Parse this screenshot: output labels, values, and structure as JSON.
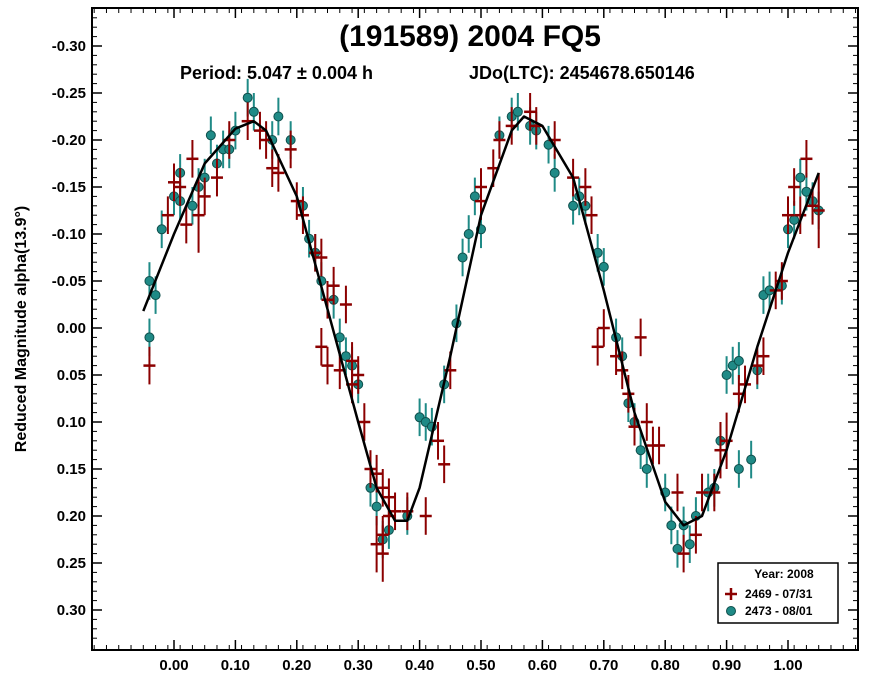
{
  "chart_data": {
    "type": "scatter",
    "title": "(191589) 2004 FQ5",
    "subtitle_period": "Period: 5.047 ± 0.004 h",
    "subtitle_jdo": "JDo(LTC): 2454678.650146",
    "ylabel": "Reduced Magnitude alpha(13.9°)",
    "xlabel": "",
    "xlim": [
      -0.1,
      1.12
    ],
    "ylim": [
      0.35,
      -0.35
    ],
    "y_inverted": true,
    "x_ticks": [
      "0.00",
      "0.10",
      "0.20",
      "0.30",
      "0.40",
      "0.50",
      "0.60",
      "0.70",
      "0.80",
      "0.90",
      "1.00"
    ],
    "y_ticks": [
      "-0.30",
      "-0.25",
      "-0.20",
      "-0.15",
      "-0.10",
      "-0.05",
      "0.00",
      "0.05",
      "0.10",
      "0.15",
      "0.20",
      "0.25",
      "0.30"
    ],
    "legend": {
      "title": "Year: 2008",
      "placement": "bottom-right",
      "entries": [
        "2469 - 07/31",
        "2473 - 08/01"
      ]
    },
    "colors": {
      "series1": "#8b0000",
      "series2": "#1f8a86",
      "curve": "#000000"
    },
    "fit_curve": [
      [
        -0.05,
        -0.018
      ],
      [
        0.0,
        -0.1
      ],
      [
        0.05,
        -0.175
      ],
      [
        0.1,
        -0.212
      ],
      [
        0.13,
        -0.22
      ],
      [
        0.15,
        -0.21
      ],
      [
        0.2,
        -0.14
      ],
      [
        0.25,
        -0.02
      ],
      [
        0.3,
        0.1
      ],
      [
        0.33,
        0.17
      ],
      [
        0.36,
        0.205
      ],
      [
        0.38,
        0.205
      ],
      [
        0.4,
        0.17
      ],
      [
        0.45,
        0.03
      ],
      [
        0.5,
        -0.12
      ],
      [
        0.55,
        -0.21
      ],
      [
        0.57,
        -0.225
      ],
      [
        0.6,
        -0.215
      ],
      [
        0.65,
        -0.16
      ],
      [
        0.7,
        -0.04
      ],
      [
        0.75,
        0.09
      ],
      [
        0.8,
        0.185
      ],
      [
        0.83,
        0.21
      ],
      [
        0.86,
        0.2
      ],
      [
        0.9,
        0.13
      ],
      [
        0.95,
        0.02
      ],
      [
        1.0,
        -0.08
      ],
      [
        1.05,
        -0.165
      ]
    ],
    "series": [
      {
        "name": "2469 - 07/31",
        "marker": "plus",
        "points": [
          [
            -0.04,
            0.04,
            0.02
          ],
          [
            -0.01,
            -0.12,
            0.02
          ],
          [
            0.0,
            -0.155,
            0.02
          ],
          [
            0.01,
            -0.15,
            0.02
          ],
          [
            0.02,
            -0.11,
            0.02
          ],
          [
            0.03,
            -0.18,
            0.02
          ],
          [
            0.04,
            -0.12,
            0.04
          ],
          [
            0.05,
            -0.14,
            0.02
          ],
          [
            0.07,
            -0.16,
            0.02
          ],
          [
            0.09,
            -0.2,
            0.02
          ],
          [
            0.12,
            -0.22,
            0.02
          ],
          [
            0.14,
            -0.21,
            0.02
          ],
          [
            0.15,
            -0.2,
            0.02
          ],
          [
            0.16,
            -0.17,
            0.02
          ],
          [
            0.17,
            -0.165,
            0.02
          ],
          [
            0.19,
            -0.19,
            0.02
          ],
          [
            0.2,
            -0.135,
            0.02
          ],
          [
            0.21,
            -0.12,
            0.02
          ],
          [
            0.23,
            -0.08,
            0.02
          ],
          [
            0.24,
            -0.075,
            0.02
          ],
          [
            0.24,
            0.02,
            0.02
          ],
          [
            0.25,
            -0.03,
            0.02
          ],
          [
            0.25,
            0.04,
            0.02
          ],
          [
            0.26,
            -0.045,
            0.02
          ],
          [
            0.27,
            0.045,
            0.02
          ],
          [
            0.28,
            -0.025,
            0.02
          ],
          [
            0.29,
            0.035,
            0.02
          ],
          [
            0.29,
            0.06,
            0.02
          ],
          [
            0.3,
            0.05,
            0.02
          ],
          [
            0.31,
            0.1,
            0.02
          ],
          [
            0.32,
            0.15,
            0.02
          ],
          [
            0.33,
            0.155,
            0.02
          ],
          [
            0.34,
            0.17,
            0.02
          ],
          [
            0.35,
            0.18,
            0.02
          ],
          [
            0.33,
            0.23,
            0.03
          ],
          [
            0.34,
            0.24,
            0.03
          ],
          [
            0.36,
            0.195,
            0.02
          ],
          [
            0.38,
            0.195,
            0.02
          ],
          [
            0.41,
            0.2,
            0.02
          ],
          [
            0.43,
            0.12,
            0.02
          ],
          [
            0.44,
            0.145,
            0.02
          ],
          [
            0.45,
            0.045,
            0.02
          ],
          [
            0.5,
            -0.15,
            0.02
          ],
          [
            0.5,
            -0.135,
            0.02
          ],
          [
            0.52,
            -0.17,
            0.02
          ],
          [
            0.53,
            -0.2,
            0.02
          ],
          [
            0.55,
            -0.215,
            0.02
          ],
          [
            0.58,
            -0.23,
            0.02
          ],
          [
            0.59,
            -0.215,
            0.02
          ],
          [
            0.62,
            -0.2,
            0.02
          ],
          [
            0.65,
            -0.16,
            0.02
          ],
          [
            0.67,
            -0.15,
            0.02
          ],
          [
            0.68,
            -0.12,
            0.02
          ],
          [
            0.69,
            0.02,
            0.02
          ],
          [
            0.7,
            0.0,
            0.02
          ],
          [
            0.72,
            0.03,
            0.02
          ],
          [
            0.73,
            0.045,
            0.02
          ],
          [
            0.74,
            0.07,
            0.02
          ],
          [
            0.75,
            0.105,
            0.02
          ],
          [
            0.76,
            0.01,
            0.02
          ],
          [
            0.77,
            0.1,
            0.02
          ],
          [
            0.78,
            0.125,
            0.02
          ],
          [
            0.79,
            0.125,
            0.02
          ],
          [
            0.82,
            0.175,
            0.02
          ],
          [
            0.83,
            0.24,
            0.02
          ],
          [
            0.85,
            0.22,
            0.02
          ],
          [
            0.86,
            0.175,
            0.02
          ],
          [
            0.88,
            0.175,
            0.02
          ],
          [
            0.89,
            0.13,
            0.03
          ],
          [
            0.9,
            0.12,
            0.03
          ],
          [
            0.92,
            0.07,
            0.02
          ],
          [
            0.93,
            0.06,
            0.02
          ],
          [
            0.95,
            0.04,
            0.02
          ],
          [
            0.96,
            0.03,
            0.02
          ],
          [
            0.98,
            -0.04,
            0.02
          ],
          [
            0.99,
            -0.05,
            0.02
          ],
          [
            1.0,
            -0.12,
            0.02
          ],
          [
            1.01,
            -0.15,
            0.02
          ],
          [
            1.02,
            -0.12,
            0.02
          ],
          [
            1.03,
            -0.18,
            0.02
          ],
          [
            1.04,
            -0.13,
            0.02
          ],
          [
            1.05,
            -0.125,
            0.04
          ],
          [
            0.34,
            0.22,
            0.02
          ],
          [
            0.35,
            0.2,
            0.02
          ]
        ]
      },
      {
        "name": "2473 - 08/01",
        "marker": "circle",
        "points": [
          [
            -0.04,
            -0.05,
            0.02
          ],
          [
            -0.04,
            0.01,
            0.02
          ],
          [
            -0.03,
            -0.035,
            0.02
          ],
          [
            -0.02,
            -0.105,
            0.02
          ],
          [
            0.0,
            -0.14,
            0.02
          ],
          [
            0.01,
            -0.135,
            0.02
          ],
          [
            0.01,
            -0.165,
            0.02
          ],
          [
            0.03,
            -0.13,
            0.02
          ],
          [
            0.04,
            -0.15,
            0.02
          ],
          [
            0.05,
            -0.16,
            0.02
          ],
          [
            0.06,
            -0.205,
            0.02
          ],
          [
            0.07,
            -0.175,
            0.02
          ],
          [
            0.08,
            -0.19,
            0.02
          ],
          [
            0.09,
            -0.19,
            0.02
          ],
          [
            0.1,
            -0.21,
            0.02
          ],
          [
            0.12,
            -0.245,
            0.02
          ],
          [
            0.13,
            -0.23,
            0.02
          ],
          [
            0.16,
            -0.2,
            0.02
          ],
          [
            0.17,
            -0.225,
            0.02
          ],
          [
            0.19,
            -0.2,
            0.02
          ],
          [
            0.21,
            -0.13,
            0.02
          ],
          [
            0.22,
            -0.095,
            0.02
          ],
          [
            0.23,
            -0.08,
            0.02
          ],
          [
            0.24,
            -0.05,
            0.02
          ],
          [
            0.26,
            -0.03,
            0.02
          ],
          [
            0.27,
            0.01,
            0.02
          ],
          [
            0.28,
            0.03,
            0.02
          ],
          [
            0.29,
            0.04,
            0.02
          ],
          [
            0.3,
            0.06,
            0.02
          ],
          [
            0.32,
            0.17,
            0.02
          ],
          [
            0.33,
            0.19,
            0.02
          ],
          [
            0.34,
            0.225,
            0.02
          ],
          [
            0.35,
            0.215,
            0.02
          ],
          [
            0.38,
            0.2,
            0.02
          ],
          [
            0.4,
            0.095,
            0.02
          ],
          [
            0.41,
            0.1,
            0.02
          ],
          [
            0.42,
            0.105,
            0.02
          ],
          [
            0.44,
            0.06,
            0.02
          ],
          [
            0.46,
            -0.005,
            0.02
          ],
          [
            0.47,
            -0.075,
            0.02
          ],
          [
            0.48,
            -0.1,
            0.02
          ],
          [
            0.49,
            -0.14,
            0.02
          ],
          [
            0.5,
            -0.105,
            0.02
          ],
          [
            0.53,
            -0.205,
            0.02
          ],
          [
            0.55,
            -0.225,
            0.02
          ],
          [
            0.56,
            -0.23,
            0.02
          ],
          [
            0.58,
            -0.215,
            0.02
          ],
          [
            0.59,
            -0.21,
            0.02
          ],
          [
            0.61,
            -0.195,
            0.02
          ],
          [
            0.62,
            -0.165,
            0.02
          ],
          [
            0.65,
            -0.13,
            0.02
          ],
          [
            0.66,
            -0.14,
            0.02
          ],
          [
            0.67,
            -0.13,
            0.02
          ],
          [
            0.69,
            -0.08,
            0.02
          ],
          [
            0.7,
            -0.065,
            0.02
          ],
          [
            0.72,
            0.01,
            0.02
          ],
          [
            0.73,
            0.03,
            0.02
          ],
          [
            0.74,
            0.08,
            0.02
          ],
          [
            0.75,
            0.1,
            0.02
          ],
          [
            0.76,
            0.13,
            0.02
          ],
          [
            0.77,
            0.15,
            0.02
          ],
          [
            0.8,
            0.175,
            0.02
          ],
          [
            0.81,
            0.21,
            0.02
          ],
          [
            0.82,
            0.235,
            0.02
          ],
          [
            0.83,
            0.21,
            0.02
          ],
          [
            0.84,
            0.23,
            0.02
          ],
          [
            0.85,
            0.2,
            0.02
          ],
          [
            0.87,
            0.175,
            0.02
          ],
          [
            0.88,
            0.17,
            0.02
          ],
          [
            0.89,
            0.12,
            0.02
          ],
          [
            0.9,
            0.05,
            0.02
          ],
          [
            0.91,
            0.04,
            0.02
          ],
          [
            0.92,
            0.035,
            0.02
          ],
          [
            0.92,
            0.15,
            0.02
          ],
          [
            0.94,
            0.14,
            0.02
          ],
          [
            0.95,
            0.045,
            0.02
          ],
          [
            0.96,
            -0.035,
            0.02
          ],
          [
            0.97,
            -0.04,
            0.02
          ],
          [
            0.99,
            -0.045,
            0.02
          ],
          [
            1.0,
            -0.105,
            0.02
          ],
          [
            1.01,
            -0.115,
            0.02
          ],
          [
            1.02,
            -0.16,
            0.02
          ],
          [
            1.03,
            -0.145,
            0.02
          ],
          [
            1.04,
            -0.135,
            0.02
          ],
          [
            1.05,
            -0.125,
            0.02
          ]
        ]
      }
    ]
  }
}
